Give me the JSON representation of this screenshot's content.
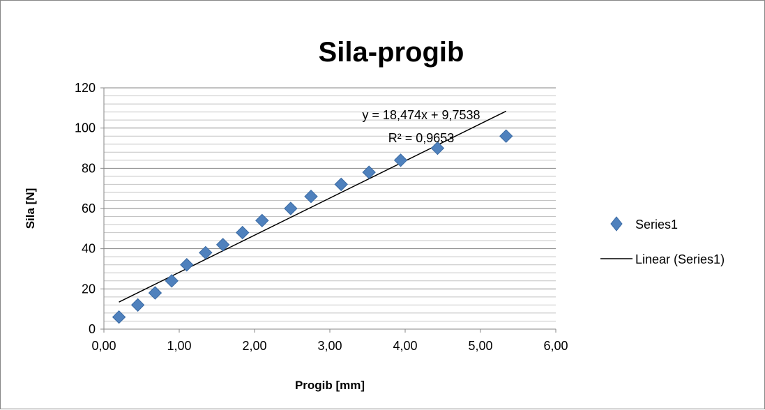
{
  "chart_data": {
    "type": "scatter",
    "title": "Sila-progib",
    "xlabel": "Progib [mm]",
    "ylabel": "Sila [N]",
    "xlim": [
      0,
      6
    ],
    "ylim": [
      0,
      120
    ],
    "x_ticks": [
      "0,00",
      "1,00",
      "2,00",
      "3,00",
      "4,00",
      "5,00",
      "6,00"
    ],
    "y_ticks": [
      "0",
      "20",
      "40",
      "60",
      "80",
      "100",
      "120"
    ],
    "grid": "horizontal major and minor",
    "legend_position": "right",
    "marker_color": "#4f81bd",
    "series": [
      {
        "name": "Series1",
        "marker": "diamond",
        "x": [
          0.2,
          0.45,
          0.68,
          0.9,
          1.1,
          1.35,
          1.58,
          1.84,
          2.1,
          2.48,
          2.75,
          3.15,
          3.52,
          3.94,
          4.43,
          5.34
        ],
        "y": [
          6,
          12,
          18,
          24,
          32,
          38,
          42,
          48,
          54,
          60,
          66,
          72,
          78,
          84,
          90,
          96
        ]
      }
    ],
    "trendline": {
      "name": "Linear (Series1)",
      "type": "linear",
      "slope": 18.474,
      "intercept": 9.7538,
      "x_range": [
        0.2,
        5.34
      ],
      "equation_label": "y = 18,474x + 9,7538",
      "r2_label": "R² = 0,9653"
    }
  }
}
